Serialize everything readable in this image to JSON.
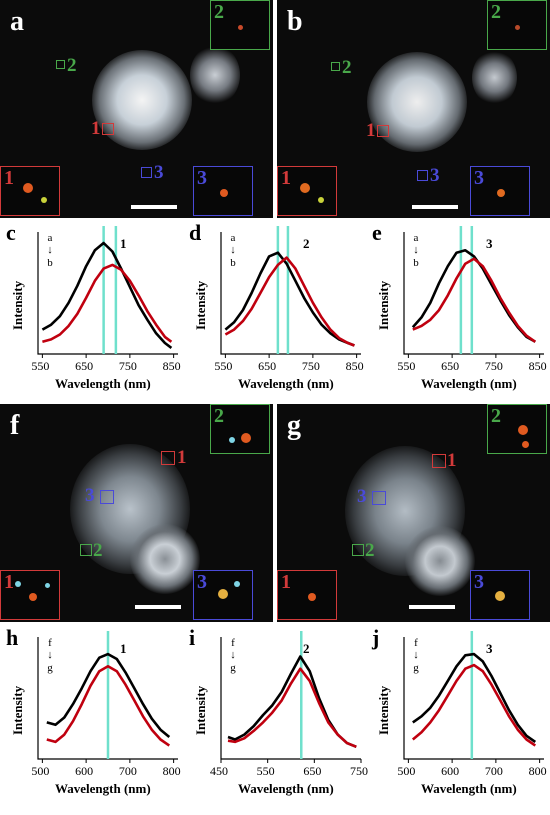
{
  "micrographs": [
    {
      "id": "a",
      "label": "a",
      "insets": [
        {
          "label": "2",
          "color": "#49a84a"
        },
        {
          "label": "1",
          "color": "#d23a3a"
        },
        {
          "label": "3",
          "color": "#4a4ad8"
        }
      ],
      "rois": [
        {
          "label": "2",
          "color": "#49a84a"
        },
        {
          "label": "1",
          "color": "#d23a3a"
        },
        {
          "label": "3",
          "color": "#4a4ad8"
        }
      ]
    },
    {
      "id": "b",
      "label": "b",
      "insets": [
        {
          "label": "2",
          "color": "#49a84a"
        },
        {
          "label": "1",
          "color": "#d23a3a"
        },
        {
          "label": "3",
          "color": "#4a4ad8"
        }
      ],
      "rois": [
        {
          "label": "2",
          "color": "#49a84a"
        },
        {
          "label": "1",
          "color": "#d23a3a"
        },
        {
          "label": "3",
          "color": "#4a4ad8"
        }
      ]
    },
    {
      "id": "f",
      "label": "f",
      "insets": [
        {
          "label": "2",
          "color": "#49a84a"
        },
        {
          "label": "1",
          "color": "#d23a3a"
        },
        {
          "label": "3",
          "color": "#4a4ad8"
        }
      ],
      "rois": [
        {
          "label": "1",
          "color": "#d23a3a"
        },
        {
          "label": "3",
          "color": "#4a4ad8"
        },
        {
          "label": "2",
          "color": "#49a84a"
        }
      ]
    },
    {
      "id": "g",
      "label": "g",
      "insets": [
        {
          "label": "2",
          "color": "#49a84a"
        },
        {
          "label": "1",
          "color": "#d23a3a"
        },
        {
          "label": "3",
          "color": "#4a4ad8"
        }
      ],
      "rois": [
        {
          "label": "1",
          "color": "#d23a3a"
        },
        {
          "label": "3",
          "color": "#4a4ad8"
        },
        {
          "label": "2",
          "color": "#49a84a"
        }
      ]
    }
  ],
  "chart_data": [
    {
      "type": "line",
      "panel": "c",
      "spot_label": "1",
      "arrow_from": "a",
      "arrow_to": "b",
      "xlabel": "Wavelength (nm)",
      "ylabel": "Intensity",
      "xlim": [
        540,
        860
      ],
      "ylim": [
        0,
        1
      ],
      "xticks": [
        550,
        650,
        750,
        850
      ],
      "ref_lines": [
        690,
        718
      ],
      "series": [
        {
          "color": "#000000",
          "x": [
            550,
            570,
            590,
            610,
            630,
            650,
            670,
            690,
            710,
            730,
            750,
            770,
            790,
            810,
            830,
            845
          ],
          "y": [
            0.2,
            0.24,
            0.31,
            0.42,
            0.56,
            0.72,
            0.85,
            0.91,
            0.84,
            0.7,
            0.55,
            0.4,
            0.28,
            0.17,
            0.09,
            0.05
          ]
        },
        {
          "color": "#c0000f",
          "x": [
            550,
            570,
            590,
            610,
            630,
            650,
            670,
            690,
            710,
            730,
            750,
            770,
            790,
            810,
            830,
            845
          ],
          "y": [
            0.1,
            0.12,
            0.16,
            0.23,
            0.33,
            0.46,
            0.6,
            0.7,
            0.73,
            0.69,
            0.6,
            0.48,
            0.35,
            0.24,
            0.14,
            0.1
          ]
        }
      ]
    },
    {
      "type": "line",
      "panel": "d",
      "spot_label": "2",
      "arrow_from": "a",
      "arrow_to": "b",
      "xlabel": "Wavelength (nm)",
      "ylabel": "Intensity",
      "xlim": [
        540,
        860
      ],
      "ylim": [
        0,
        1
      ],
      "xticks": [
        550,
        650,
        750,
        850
      ],
      "ref_lines": [
        670,
        693
      ],
      "series": [
        {
          "color": "#000000",
          "x": [
            550,
            570,
            590,
            610,
            630,
            650,
            670,
            690,
            710,
            730,
            750,
            770,
            790,
            810,
            830,
            845
          ],
          "y": [
            0.2,
            0.26,
            0.36,
            0.5,
            0.66,
            0.8,
            0.83,
            0.74,
            0.6,
            0.46,
            0.34,
            0.24,
            0.17,
            0.12,
            0.09,
            0.07
          ]
        },
        {
          "color": "#c0000f",
          "x": [
            550,
            570,
            590,
            610,
            630,
            650,
            670,
            690,
            710,
            730,
            750,
            770,
            790,
            810,
            830,
            845
          ],
          "y": [
            0.16,
            0.2,
            0.27,
            0.37,
            0.5,
            0.63,
            0.73,
            0.79,
            0.7,
            0.56,
            0.42,
            0.3,
            0.2,
            0.13,
            0.09,
            0.07
          ]
        }
      ]
    },
    {
      "type": "line",
      "panel": "e",
      "spot_label": "3",
      "arrow_from": "a",
      "arrow_to": "b",
      "xlabel": "Wavelength (nm)",
      "ylabel": "Intensity",
      "xlim": [
        540,
        860
      ],
      "ylim": [
        0,
        1
      ],
      "xticks": [
        550,
        650,
        750,
        850
      ],
      "ref_lines": [
        670,
        695
      ],
      "series": [
        {
          "color": "#000000",
          "x": [
            560,
            580,
            600,
            620,
            640,
            660,
            680,
            700,
            720,
            740,
            760,
            780,
            800,
            820,
            840
          ],
          "y": [
            0.22,
            0.3,
            0.42,
            0.58,
            0.72,
            0.83,
            0.85,
            0.8,
            0.7,
            0.57,
            0.44,
            0.32,
            0.22,
            0.14,
            0.1
          ]
        },
        {
          "color": "#c0000f",
          "x": [
            560,
            580,
            600,
            620,
            640,
            660,
            680,
            700,
            720,
            740,
            760,
            780,
            800,
            820,
            840
          ],
          "y": [
            0.2,
            0.23,
            0.28,
            0.36,
            0.48,
            0.62,
            0.74,
            0.78,
            0.72,
            0.6,
            0.46,
            0.34,
            0.23,
            0.15,
            0.1
          ]
        }
      ]
    },
    {
      "type": "line",
      "panel": "h",
      "spot_label": "1",
      "arrow_from": "f",
      "arrow_to": "g",
      "xlabel": "Wavelength (nm)",
      "ylabel": "Intensity",
      "xlim": [
        490,
        810
      ],
      "ylim": [
        0,
        1
      ],
      "xticks": [
        500,
        600,
        700,
        800
      ],
      "ref_lines": [
        650
      ],
      "series": [
        {
          "color": "#000000",
          "x": [
            510,
            530,
            550,
            570,
            590,
            610,
            630,
            650,
            670,
            690,
            710,
            730,
            750,
            770,
            790
          ],
          "y": [
            0.3,
            0.28,
            0.34,
            0.45,
            0.58,
            0.72,
            0.83,
            0.86,
            0.82,
            0.71,
            0.58,
            0.45,
            0.33,
            0.24,
            0.18
          ]
        },
        {
          "color": "#c0000f",
          "x": [
            510,
            530,
            550,
            570,
            590,
            610,
            630,
            650,
            670,
            690,
            710,
            730,
            750,
            770,
            790
          ],
          "y": [
            0.16,
            0.14,
            0.2,
            0.31,
            0.45,
            0.6,
            0.72,
            0.76,
            0.72,
            0.61,
            0.48,
            0.35,
            0.24,
            0.16,
            0.11
          ]
        }
      ]
    },
    {
      "type": "line",
      "panel": "i",
      "spot_label": "2",
      "arrow_from": "f",
      "arrow_to": "g",
      "xlabel": "Wavelength (nm)",
      "ylabel": "Intensity",
      "xlim": [
        450,
        750
      ],
      "ylim": [
        0,
        1
      ],
      "xticks": [
        450,
        550,
        650,
        750
      ],
      "ref_lines": [
        622
      ],
      "series": [
        {
          "color": "#000000",
          "x": [
            465,
            480,
            500,
            520,
            540,
            560,
            580,
            600,
            620,
            640,
            660,
            680,
            700,
            720,
            740
          ],
          "y": [
            0.18,
            0.16,
            0.2,
            0.27,
            0.36,
            0.44,
            0.55,
            0.7,
            0.84,
            0.72,
            0.5,
            0.32,
            0.2,
            0.13,
            0.1
          ]
        },
        {
          "color": "#c0000f",
          "x": [
            465,
            480,
            500,
            520,
            540,
            560,
            580,
            600,
            620,
            640,
            660,
            680,
            700,
            720,
            740
          ],
          "y": [
            0.15,
            0.14,
            0.17,
            0.23,
            0.3,
            0.38,
            0.48,
            0.62,
            0.74,
            0.64,
            0.46,
            0.3,
            0.2,
            0.13,
            0.1
          ]
        }
      ]
    },
    {
      "type": "line",
      "panel": "j",
      "spot_label": "3",
      "arrow_from": "f",
      "arrow_to": "g",
      "xlabel": "Wavelength (nm)",
      "ylabel": "Intensity",
      "xlim": [
        490,
        810
      ],
      "ylim": [
        0,
        1
      ],
      "xticks": [
        500,
        600,
        700,
        800
      ],
      "ref_lines": [
        645
      ],
      "series": [
        {
          "color": "#000000",
          "x": [
            510,
            530,
            550,
            570,
            590,
            610,
            630,
            650,
            670,
            690,
            710,
            730,
            750,
            770,
            790
          ],
          "y": [
            0.3,
            0.35,
            0.42,
            0.52,
            0.64,
            0.76,
            0.85,
            0.86,
            0.8,
            0.68,
            0.54,
            0.4,
            0.28,
            0.19,
            0.14
          ]
        },
        {
          "color": "#c0000f",
          "x": [
            510,
            530,
            550,
            570,
            590,
            610,
            630,
            650,
            670,
            690,
            710,
            730,
            750,
            770,
            790
          ],
          "y": [
            0.16,
            0.22,
            0.3,
            0.4,
            0.52,
            0.64,
            0.74,
            0.77,
            0.72,
            0.61,
            0.48,
            0.35,
            0.24,
            0.16,
            0.11
          ]
        }
      ]
    }
  ]
}
